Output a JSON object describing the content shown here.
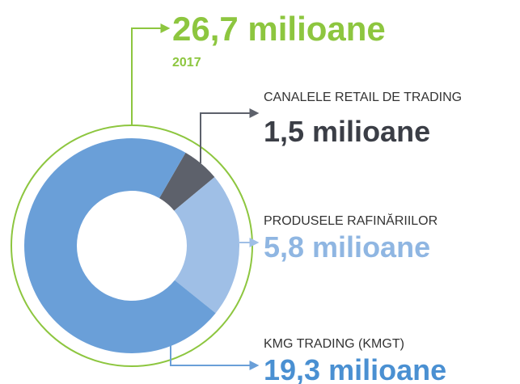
{
  "chart_data": {
    "type": "donut",
    "title": "26,7 milioane",
    "subtitle": "2017",
    "title_color": "#8dc63f",
    "categories": [
      "CANALELE RETAIL DE TRADING",
      "PRODUSELE RAFINĂRIILOR",
      "KMG TRADING (KMGT)"
    ],
    "values": [
      1.5,
      5.8,
      19.3
    ],
    "value_labels": [
      "1,5 milioane",
      "5,8 milioane",
      "19,3 milioane"
    ],
    "colors": [
      "#5d616b",
      "#9fbfe6",
      "#6a9fd8"
    ],
    "label_colors": [
      "#3b3e46",
      "#8fb6e2",
      "#4a90d2"
    ]
  }
}
